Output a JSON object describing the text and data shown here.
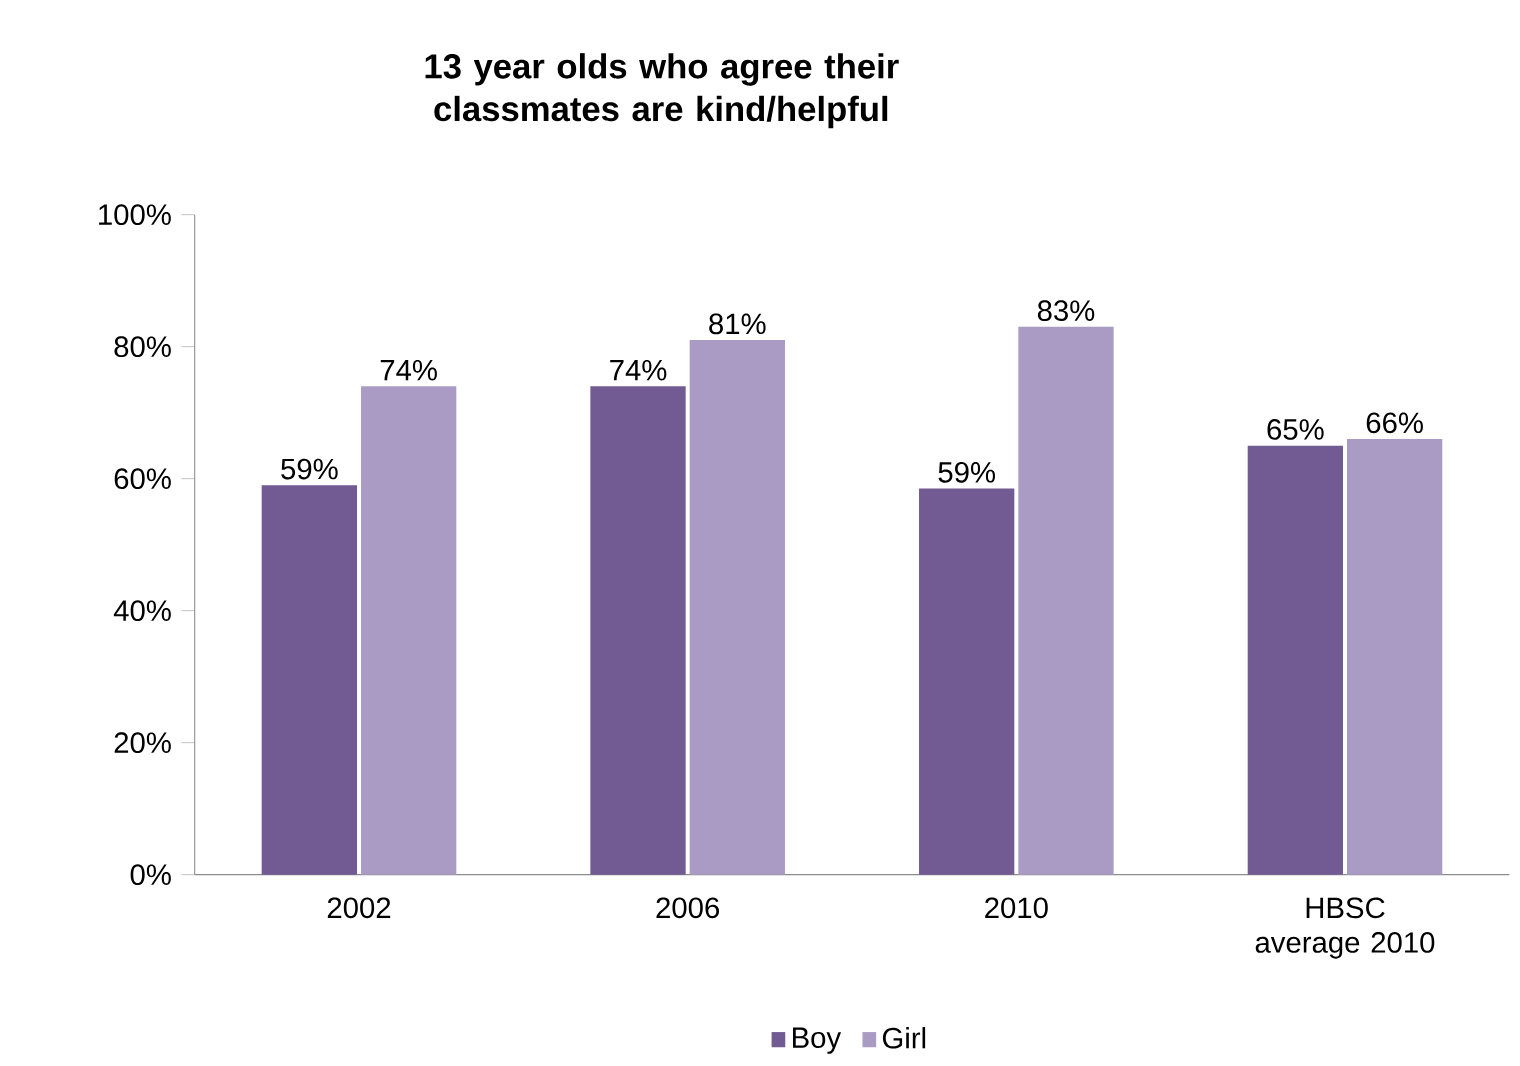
{
  "chart_data": {
    "type": "bar",
    "title": "13 year olds who agree their classmates are kind/helpful",
    "categories": [
      "2002",
      "2006",
      "2010",
      "HBSC average 2010"
    ],
    "series": [
      {
        "name": "Boy",
        "color": "#725a93",
        "values": [
          59,
          74,
          58.5,
          65
        ],
        "value_labels": [
          "59%",
          "74%",
          "59%",
          "65%"
        ]
      },
      {
        "name": "Girl",
        "color": "#a99bc3",
        "values": [
          74,
          81,
          83,
          66
        ],
        "value_labels": [
          "74%",
          "81%",
          "83%",
          "66%"
        ]
      }
    ],
    "ylim": [
      0,
      100
    ],
    "yticks": [
      {
        "value": 0,
        "label": "0%"
      },
      {
        "value": 20,
        "label": "20%"
      },
      {
        "value": 40,
        "label": "40%"
      },
      {
        "value": 60,
        "label": "60%"
      },
      {
        "value": 80,
        "label": "80%"
      },
      {
        "value": 100,
        "label": "100%"
      }
    ],
    "grid": false,
    "legend": "bottom"
  }
}
